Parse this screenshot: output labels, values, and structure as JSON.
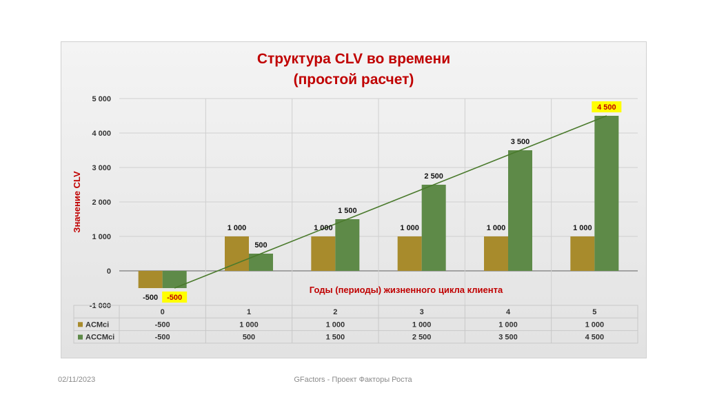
{
  "chart_data": {
    "type": "bar",
    "title": [
      "Структура CLV во времени",
      "(простой расчет)"
    ],
    "ylabel": "Значение CLV",
    "xlabel": "Годы (периоды) жизненного цикла клиента",
    "ylim": [
      -1000,
      5000
    ],
    "yticks": [
      -1000,
      0,
      1000,
      2000,
      3000,
      4000,
      5000
    ],
    "ytick_labels": [
      "-1 000",
      "0",
      "1 000",
      "2 000",
      "3 000",
      "4 000",
      "5 000"
    ],
    "categories": [
      "0",
      "1",
      "2",
      "3",
      "4",
      "5"
    ],
    "series": [
      {
        "name": "ACMci",
        "color": "#a88b2c",
        "values": [
          -500,
          1000,
          1000,
          1000,
          1000,
          1000
        ],
        "labels": [
          "-500",
          "1 000",
          "1 000",
          "1 000",
          "1 000",
          "1 000"
        ]
      },
      {
        "name": "ACCMci",
        "color": "#5e8a48",
        "values": [
          -500,
          500,
          1500,
          2500,
          3500,
          4500
        ],
        "labels": [
          "-500",
          "500",
          "1 500",
          "2 500",
          "3 500",
          "4 500"
        ],
        "highlighted_labels": [
          0,
          5
        ]
      }
    ],
    "trendline": {
      "from": 0,
      "to": 5,
      "color": "#4a7a2c"
    },
    "highlight_color": "#ffff00",
    "title_color": "#c00000",
    "grid": true,
    "legend": "data-table"
  },
  "footer": {
    "date": "02/11/2023",
    "center": "GFactors - Проект Факторы Роста"
  }
}
